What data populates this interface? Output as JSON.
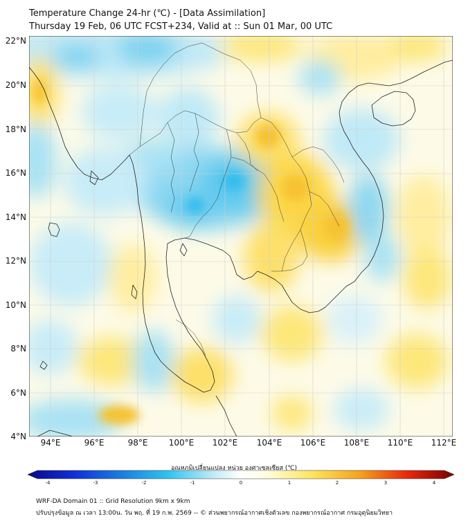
{
  "header": {
    "title": "Temperature Change 24-hr (℃) - [Data Assimilation]",
    "subtitle": "Thursday 19 Feb, 06 UTC FCST+234, Valid at :: Sun 01 Mar, 00 UTC"
  },
  "map": {
    "lat_labels": [
      "22°N",
      "20°N",
      "18°N",
      "16°N",
      "14°N",
      "12°N",
      "10°N",
      "8°N",
      "6°N",
      "4°N"
    ],
    "lon_labels": [
      "94°E",
      "96°E",
      "98°E",
      "100°E",
      "102°E",
      "104°E",
      "106°E",
      "108°E",
      "110°E",
      "112°E"
    ],
    "lat_range": [
      4,
      22.2
    ],
    "lon_range": [
      93,
      112.4
    ]
  },
  "colorbar": {
    "label": "อุณหภูมิเปลี่ยนแปลง หน่วย องศาเซลเซียส (℃)",
    "ticks": [
      "-4",
      "-3",
      "-2",
      "-1",
      "0",
      "1",
      "2",
      "3",
      "4"
    ],
    "range": [
      -4,
      4
    ],
    "colors": [
      "#08088a",
      "#1030d8",
      "#1a7ee0",
      "#2fc4f0",
      "#c8ecf8",
      "#fffde0",
      "#fde35a",
      "#f4a21c",
      "#e8280e",
      "#7a0000"
    ]
  },
  "footer": {
    "line1": "WRF-DA Domain 01 :: Grid Resolution 9km x 9km",
    "line2": "ปรับปรุงข้อมูล ณ เวลา 13:00น. วัน พฤ. ที่ 19 ก.พ. 2569 -- © ส่วนพยากรณ์อากาศเชิงตัวเลข กองพยากรณ์อากาศ กรมอุตุนิยมวิทยา"
  }
}
